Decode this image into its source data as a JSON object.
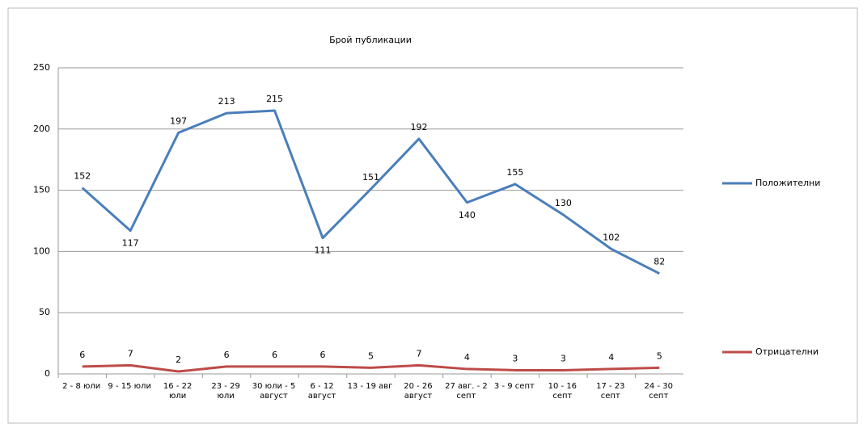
{
  "chart_data": {
    "type": "line",
    "title": "Брой публикации",
    "categories": [
      "2 - 8 юли",
      "9 - 15 юли",
      "16 - 22 юли",
      "23 - 29 юли",
      "30 юли - 5 август",
      "6 - 12 август",
      "13 - 19 авг",
      "20 - 26 август",
      "27 авг. - 2 септ",
      "3 - 9 септ",
      "10 - 16 септ",
      "17 - 23 септ",
      "24 - 30 септ"
    ],
    "series": [
      {
        "name": "Положителни",
        "color": "#4a7ebb",
        "values": [
          152,
          117,
          197,
          213,
          215,
          111,
          151,
          192,
          140,
          155,
          130,
          102,
          82
        ]
      },
      {
        "name": "Отрицателни",
        "color": "#be4b48",
        "values": [
          6,
          7,
          2,
          6,
          6,
          6,
          5,
          7,
          4,
          3,
          3,
          4,
          5
        ]
      }
    ],
    "ylim": [
      0,
      250
    ],
    "yticks": [
      0,
      50,
      100,
      150,
      200,
      250
    ],
    "grid": true,
    "legend": "right",
    "data_labels": true
  }
}
